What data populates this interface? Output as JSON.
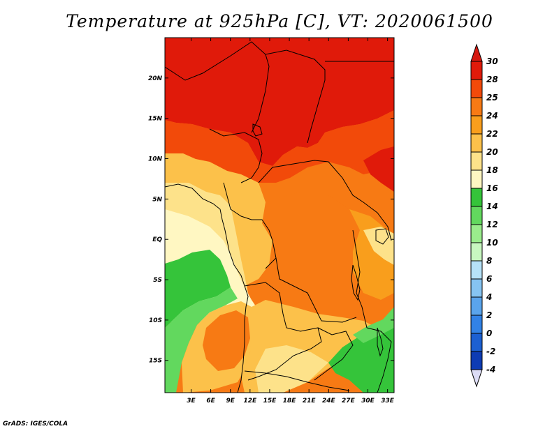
{
  "title": "Temperature at 925hPa [C], VT: 2020061500",
  "credit": "GrADS: IGES/COLA",
  "map": {
    "lat_range": [
      -19,
      25
    ],
    "lon_range": [
      -1,
      34
    ],
    "lat_ticks": [
      {
        "value": 20,
        "label": "20N"
      },
      {
        "value": 15,
        "label": "15N"
      },
      {
        "value": 10,
        "label": "10N"
      },
      {
        "value": 5,
        "label": "5N"
      },
      {
        "value": 0,
        "label": "EQ"
      },
      {
        "value": -5,
        "label": "5S"
      },
      {
        "value": -10,
        "label": "10S"
      },
      {
        "value": -15,
        "label": "15S"
      }
    ],
    "lon_ticks": [
      {
        "value": 3,
        "label": "3E"
      },
      {
        "value": 6,
        "label": "6E"
      },
      {
        "value": 9,
        "label": "9E"
      },
      {
        "value": 12,
        "label": "12E"
      },
      {
        "value": 15,
        "label": "15E"
      },
      {
        "value": 18,
        "label": "18E"
      },
      {
        "value": 21,
        "label": "21E"
      },
      {
        "value": 24,
        "label": "24E"
      },
      {
        "value": 27,
        "label": "27E"
      },
      {
        "value": 30,
        "label": "30E"
      },
      {
        "value": 33,
        "label": "33E"
      }
    ]
  },
  "colorbar": {
    "labels": [
      "30",
      "28",
      "25",
      "24",
      "22",
      "20",
      "18",
      "16",
      "14",
      "12",
      "10",
      "8",
      "6",
      "4",
      "2",
      "0",
      "-2",
      "-4"
    ],
    "colors": [
      "#e01a0a",
      "#f24a0a",
      "#f77a14",
      "#f99e1c",
      "#fcc14a",
      "#fde28a",
      "#fff7c2",
      "#35c43a",
      "#62d85e",
      "#9aec8c",
      "#c8f7c0",
      "#b6e2f8",
      "#86c4f2",
      "#5aa4ec",
      "#3282e6",
      "#1c60d2",
      "#0e3cb4",
      "#0a1488"
    ],
    "top_cap_color": "#d61810",
    "bottom_cap_color": "#dcdcf6"
  }
}
